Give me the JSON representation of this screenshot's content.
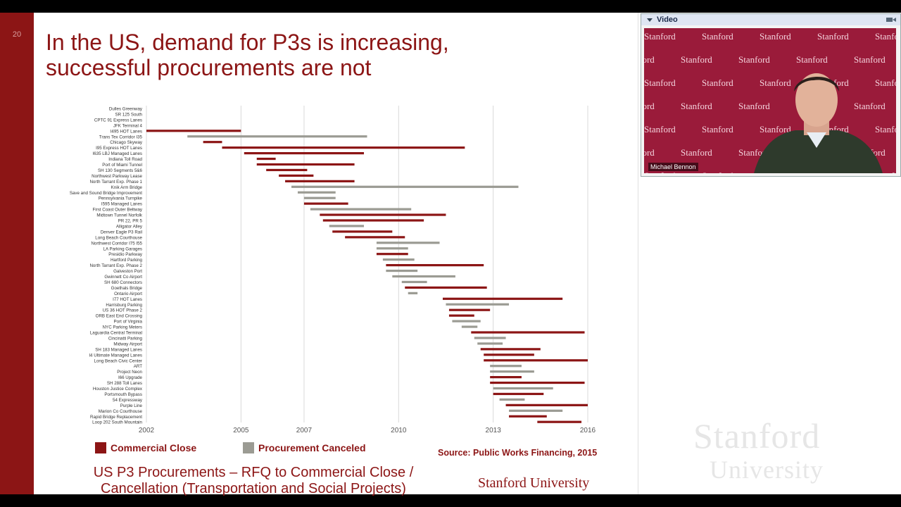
{
  "slide": {
    "number": "20",
    "title_lines": [
      "In the US, demand for P3s is increasing,",
      "successful procurements are not"
    ],
    "source": "Source: Public Works Financing, 2015",
    "caption_lines": [
      "US P3 Procurements – RFQ to Commercial Close /",
      "Cancellation (Transportation and Social Projects)"
    ],
    "university_logo": "Stanford University"
  },
  "legend": {
    "commercial_close": "Commercial Close",
    "procurement_canceled": "Procurement Canceled"
  },
  "video_panel": {
    "title": "Video",
    "watermark": "Stanford",
    "speaker_name": "Michael Bennon"
  },
  "watermark": {
    "line1": "Stanford",
    "line2": "University"
  },
  "colors": {
    "commercial_close": "#8c1515",
    "procurement_canceled": "#9b9b93",
    "accent": "#8c1515"
  },
  "icons": {
    "video_collapse": "chevron-down-icon",
    "video_camera": "camera-icon"
  },
  "chart_data": {
    "type": "gantt",
    "x_ticks": [
      2002,
      2005,
      2007,
      2010,
      2013,
      2016
    ],
    "xlim": [
      2002,
      2016
    ],
    "grid": true,
    "legend_position": "bottom-left",
    "series_names": [
      "Commercial Close",
      "Procurement Canceled"
    ],
    "projects": [
      {
        "name": "Dulles Greenway",
        "start": null,
        "end": null,
        "status": null
      },
      {
        "name": "SR 125 South",
        "start": null,
        "end": null,
        "status": null
      },
      {
        "name": "CPTC 91 Express Lanes",
        "start": null,
        "end": null,
        "status": null
      },
      {
        "name": "JFK Terminal 4",
        "start": null,
        "end": null,
        "status": null
      },
      {
        "name": "I495 HOT Lanes",
        "start": 2002.0,
        "end": 2005.0,
        "status": "close"
      },
      {
        "name": "Trans Tex Corridor I35",
        "start": 2003.3,
        "end": 2009.0,
        "status": "canceled"
      },
      {
        "name": "Chicago Skyway",
        "start": 2003.8,
        "end": 2004.4,
        "status": "close"
      },
      {
        "name": "I95 Express HOT Lanes",
        "start": 2004.4,
        "end": 2012.1,
        "status": "close"
      },
      {
        "name": "I635 LBJ Managed Lanes",
        "start": 2005.1,
        "end": 2008.9,
        "status": "close"
      },
      {
        "name": "Indiana Toll Road",
        "start": 2005.5,
        "end": 2006.1,
        "status": "close"
      },
      {
        "name": "Port of Miami Tunnel",
        "start": 2005.5,
        "end": 2008.6,
        "status": "close"
      },
      {
        "name": "SH 130 Segments 5&6",
        "start": 2005.8,
        "end": 2007.1,
        "status": "close"
      },
      {
        "name": "Northwest Parkway Lease",
        "start": 2006.2,
        "end": 2007.3,
        "status": "close"
      },
      {
        "name": "North Tarrant Exp. Phase 1",
        "start": 2006.4,
        "end": 2008.6,
        "status": "close"
      },
      {
        "name": "Knik Arm Bridge",
        "start": 2006.6,
        "end": 2013.8,
        "status": "canceled"
      },
      {
        "name": "Save and Sound Bridge Improvement",
        "start": 2006.8,
        "end": 2008.0,
        "status": "canceled"
      },
      {
        "name": "Pennsylvania Turnpike",
        "start": 2007.0,
        "end": 2008.0,
        "status": "canceled"
      },
      {
        "name": "I595 Managed Lanes",
        "start": 2007.0,
        "end": 2008.4,
        "status": "close"
      },
      {
        "name": "First Coast Outer Beltway",
        "start": 2007.2,
        "end": 2010.4,
        "status": "canceled"
      },
      {
        "name": "Midtown Tunnel Norfolk",
        "start": 2007.5,
        "end": 2011.5,
        "status": "close"
      },
      {
        "name": "PR 22, PR 5",
        "start": 2007.6,
        "end": 2010.8,
        "status": "close"
      },
      {
        "name": "Alligator Alley",
        "start": 2007.8,
        "end": 2008.9,
        "status": "canceled"
      },
      {
        "name": "Denver Eagle P3 Rail",
        "start": 2007.9,
        "end": 2009.8,
        "status": "close"
      },
      {
        "name": "Long Beach Courthouse",
        "start": 2008.3,
        "end": 2010.2,
        "status": "close"
      },
      {
        "name": "Northwest Corridor I75 I55",
        "start": 2009.3,
        "end": 2011.3,
        "status": "canceled"
      },
      {
        "name": "LA Parking Garages",
        "start": 2009.3,
        "end": 2010.3,
        "status": "canceled"
      },
      {
        "name": "Presidio Parkway",
        "start": 2009.3,
        "end": 2010.3,
        "status": "close"
      },
      {
        "name": "Hartford Parking",
        "start": 2009.5,
        "end": 2010.5,
        "status": "canceled"
      },
      {
        "name": "North Tarrant Exp. Phase 2",
        "start": 2009.6,
        "end": 2012.7,
        "status": "close"
      },
      {
        "name": "Galveston Port",
        "start": 2009.6,
        "end": 2010.6,
        "status": "canceled"
      },
      {
        "name": "Gwinnett Co Airport",
        "start": 2009.8,
        "end": 2011.8,
        "status": "canceled"
      },
      {
        "name": "SH 680 Connectors",
        "start": 2010.1,
        "end": 2010.9,
        "status": "canceled"
      },
      {
        "name": "Goethals Bridge",
        "start": 2010.2,
        "end": 2012.8,
        "status": "close"
      },
      {
        "name": "Ontario Airport",
        "start": 2010.3,
        "end": 2010.6,
        "status": "canceled"
      },
      {
        "name": "I77 HOT Lanes",
        "start": 2011.4,
        "end": 2015.2,
        "status": "close"
      },
      {
        "name": "Harrisburg Parking",
        "start": 2011.5,
        "end": 2013.5,
        "status": "canceled"
      },
      {
        "name": "US 36 HOT Phase 2",
        "start": 2011.6,
        "end": 2012.9,
        "status": "close"
      },
      {
        "name": "ORB East End Crossing",
        "start": 2011.6,
        "end": 2012.4,
        "status": "close"
      },
      {
        "name": "Port of Virginia",
        "start": 2011.7,
        "end": 2012.6,
        "status": "canceled"
      },
      {
        "name": "NYC Parking Meters",
        "start": 2012.0,
        "end": 2012.5,
        "status": "canceled"
      },
      {
        "name": "Laguardia Central Terminal",
        "start": 2012.3,
        "end": 2015.9,
        "status": "close"
      },
      {
        "name": "Cincinatti Parking",
        "start": 2012.4,
        "end": 2013.4,
        "status": "canceled"
      },
      {
        "name": "Midway Airport",
        "start": 2012.5,
        "end": 2013.3,
        "status": "canceled"
      },
      {
        "name": "SH 183 Managed Lanes",
        "start": 2012.6,
        "end": 2014.5,
        "status": "close"
      },
      {
        "name": "I4 Ultimate Managed Lanes",
        "start": 2012.7,
        "end": 2014.3,
        "status": "close"
      },
      {
        "name": "Long Beach Civic Center",
        "start": 2012.7,
        "end": 2016.0,
        "status": "close"
      },
      {
        "name": "ART",
        "start": 2012.9,
        "end": 2013.9,
        "status": "canceled"
      },
      {
        "name": "Project Neon",
        "start": 2012.9,
        "end": 2014.3,
        "status": "canceled"
      },
      {
        "name": "I66 Upgrade",
        "start": 2012.9,
        "end": 2013.9,
        "status": "close"
      },
      {
        "name": "SH 288 Toll Lanes",
        "start": 2012.9,
        "end": 2015.9,
        "status": "close"
      },
      {
        "name": "Houston Justice Complex",
        "start": 2013.0,
        "end": 2014.9,
        "status": "canceled"
      },
      {
        "name": "Portsmouth Bypass",
        "start": 2013.0,
        "end": 2014.6,
        "status": "close"
      },
      {
        "name": "54 Expressway",
        "start": 2013.2,
        "end": 2014.0,
        "status": "canceled"
      },
      {
        "name": "Purple Line",
        "start": 2013.4,
        "end": 2016.0,
        "status": "close"
      },
      {
        "name": "Marion Co Courthouse",
        "start": 2013.5,
        "end": 2015.2,
        "status": "canceled"
      },
      {
        "name": "Rapid Bridge Replacement",
        "start": 2013.5,
        "end": 2014.7,
        "status": "close"
      },
      {
        "name": "Loop 202 South Mountain",
        "start": 2014.4,
        "end": 2015.8,
        "status": "close"
      }
    ]
  }
}
